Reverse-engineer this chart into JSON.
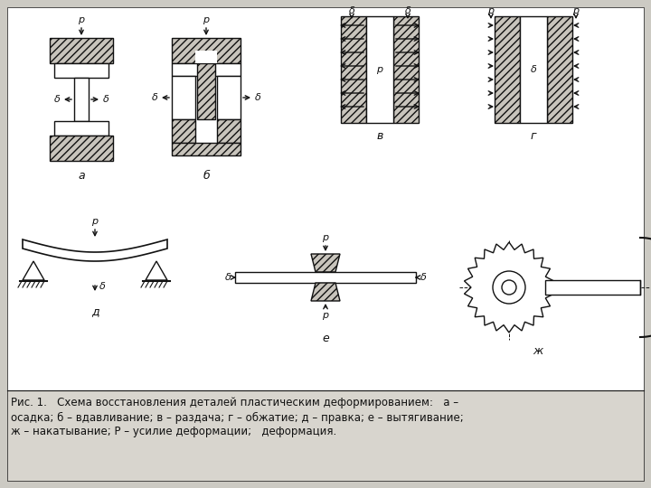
{
  "bg_color": "#cccac3",
  "panel_bg": "#f0ede6",
  "hatch_fill": "#c8c4bc",
  "line_color": "#111111",
  "figsize": [
    7.2,
    5.4
  ],
  "dpi": 100,
  "caption_line1": "Рис. 1.   Схема восстановления деталей пластическим деформированием:   а –",
  "caption_line2": "осадка; б – вдавливание; в – раздача; г – обжатие; д – правка; е – вытягивание;",
  "caption_line3": "ж – накатывание; Р – усилие деформации;   деформация.",
  "label_a": "а",
  "label_b": "б",
  "label_v": "в",
  "label_g": "г",
  "label_d": "д",
  "label_e": "е",
  "label_zh": "ж"
}
